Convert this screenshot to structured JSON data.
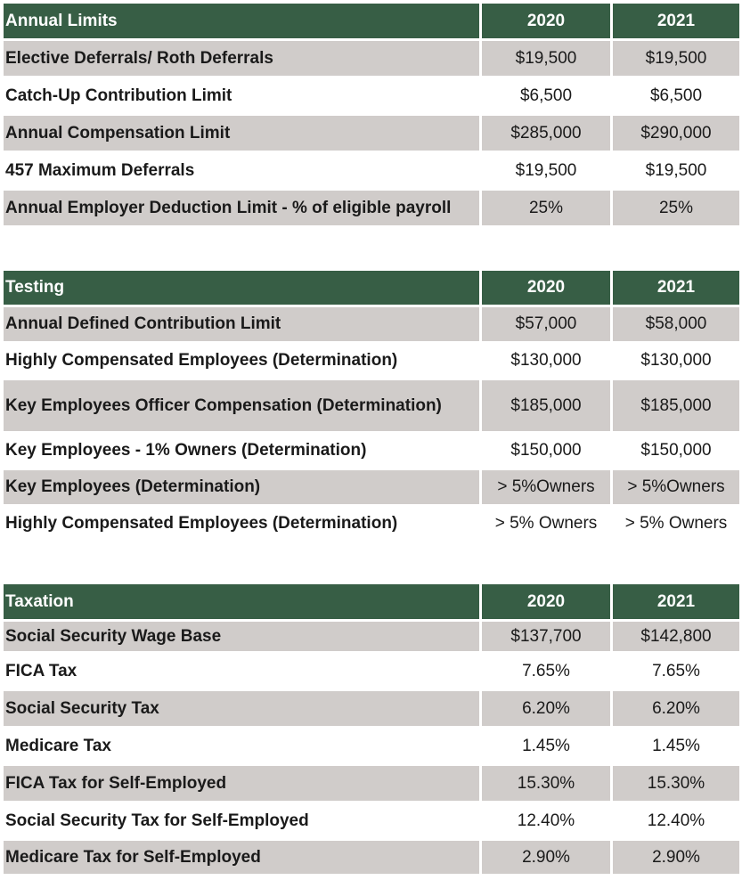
{
  "sections": [
    {
      "header": {
        "label": "Annual Limits",
        "col1": "2020",
        "col2": "2021"
      },
      "rows": [
        {
          "label": "Elective Deferrals/ Roth Deferrals",
          "v2020": "$19,500",
          "v2021": "$19,500"
        },
        {
          "label": "Catch-Up Contribution Limit",
          "v2020": "$6,500",
          "v2021": "$6,500"
        },
        {
          "label": "Annual Compensation Limit",
          "v2020": "$285,000",
          "v2021": "$290,000"
        },
        {
          "label": "457 Maximum Deferrals",
          "v2020": "$19,500",
          "v2021": "$19,500"
        },
        {
          "label": "Annual Employer Deduction Limit - % of eligible payroll",
          "v2020": "25%",
          "v2021": "25%"
        }
      ]
    },
    {
      "header": {
        "label": "Testing",
        "col1": "2020",
        "col2": "2021"
      },
      "rows": [
        {
          "label": "Annual Defined Contribution Limit",
          "v2020": "$57,000",
          "v2021": "$58,000"
        },
        {
          "label": "Highly Compensated Employees (Determination)",
          "v2020": "$130,000",
          "v2021": "$130,000"
        },
        {
          "label": "Key Employees Officer Compensation (Determination)",
          "v2020": "$185,000",
          "v2021": "$185,000"
        },
        {
          "label": "Key Employees - 1% Owners (Determination)",
          "v2020": "$150,000",
          "v2021": "$150,000"
        },
        {
          "label": "Key Employees (Determination)",
          "v2020": "> 5%Owners",
          "v2021": "> 5%Owners"
        },
        {
          "label": "Highly Compensated Employees (Determination)",
          "v2020": "> 5% Owners",
          "v2021": "> 5% Owners"
        }
      ]
    },
    {
      "header": {
        "label": "Taxation",
        "col1": "2020",
        "col2": "2021"
      },
      "rows": [
        {
          "label": "Social Security Wage Base",
          "v2020": "$137,700",
          "v2021": "$142,800"
        },
        {
          "label": "FICA Tax",
          "v2020": "7.65%",
          "v2021": "7.65%"
        },
        {
          "label": "Social Security Tax",
          "v2020": "6.20%",
          "v2021": "6.20%"
        },
        {
          "label": "Medicare Tax",
          "v2020": "1.45%",
          "v2021": "1.45%"
        },
        {
          "label": "FICA Tax for Self-Employed",
          "v2020": "15.30%",
          "v2021": "15.30%"
        },
        {
          "label": "Social Security Tax for Self-Employed",
          "v2020": "12.40%",
          "v2021": "12.40%"
        },
        {
          "label": "Medicare Tax for Self-Employed",
          "v2020": "2.90%",
          "v2021": "2.90%"
        }
      ]
    }
  ],
  "colors": {
    "header_bg": "#375e45",
    "shade_bg": "#d0ccca",
    "header_text": "#ffffff"
  }
}
